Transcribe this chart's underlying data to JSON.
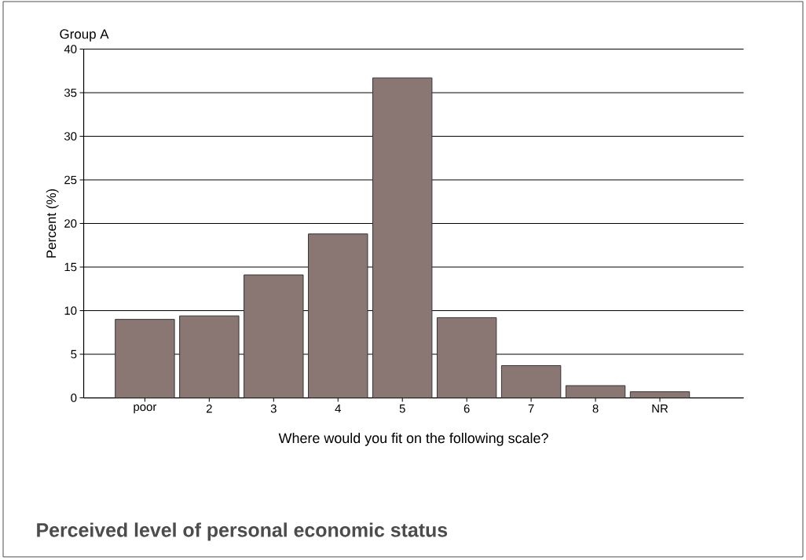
{
  "chart_data": {
    "type": "bar",
    "title": "Perceived level of personal economic status",
    "subtitle": "Group A",
    "xlabel": "Where would you fit on the following scale?",
    "ylabel": "Percent (%)",
    "categories": [
      "poor",
      "2",
      "3",
      "4",
      "5",
      "6",
      "7",
      "8",
      "NR"
    ],
    "values": [
      9.0,
      9.4,
      14.1,
      18.8,
      36.7,
      9.2,
      3.7,
      1.4,
      0.7
    ],
    "color": "#8a7773",
    "ylim": [
      0,
      40
    ],
    "yticks": [
      0,
      5,
      10,
      15,
      20,
      25,
      30,
      35,
      40
    ],
    "grid": "y"
  }
}
